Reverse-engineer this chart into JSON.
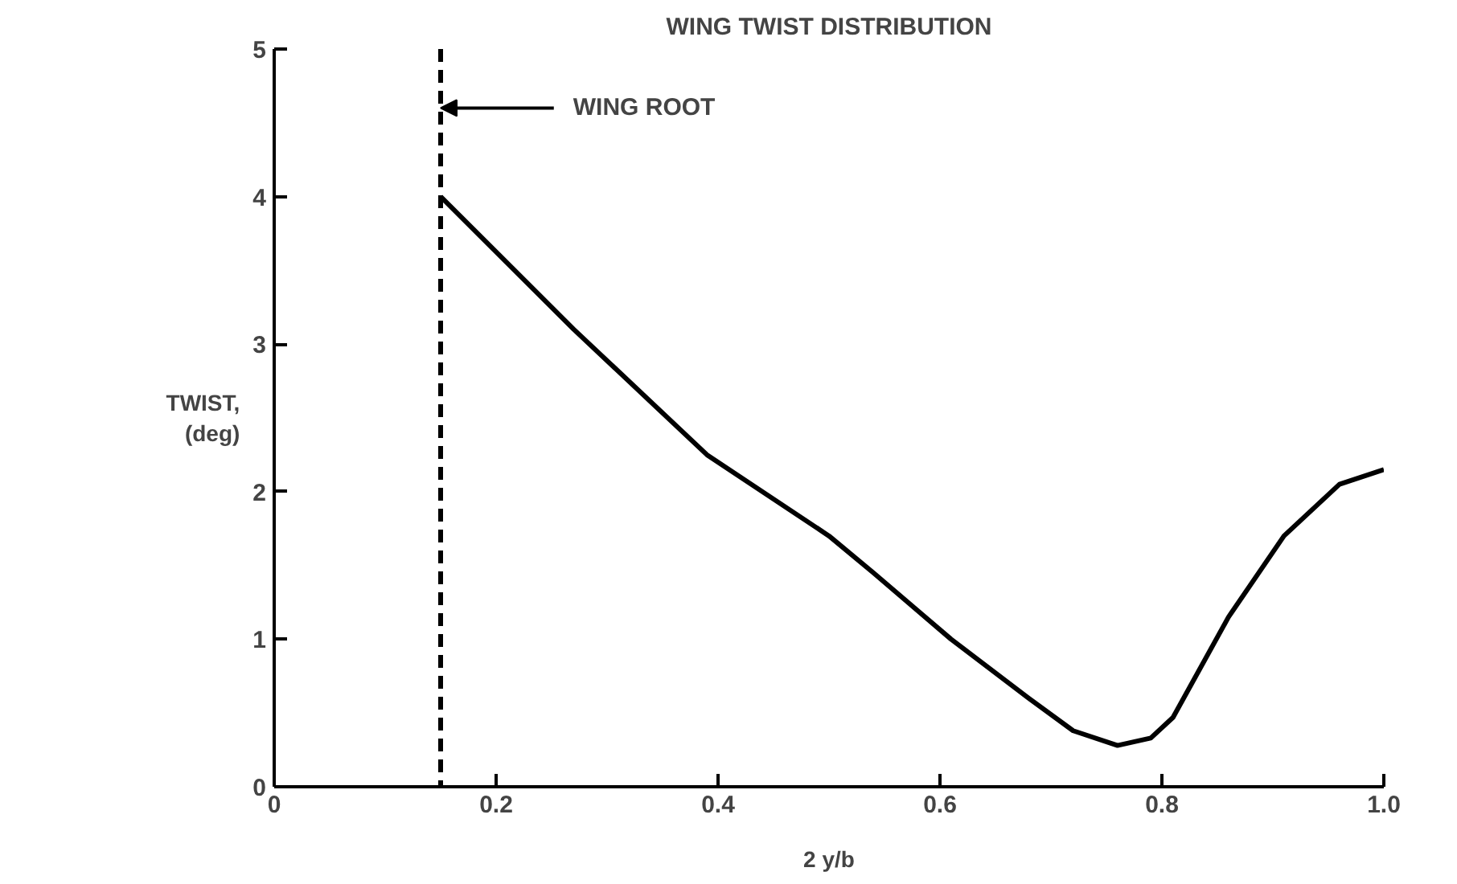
{
  "chart_data": {
    "type": "line",
    "title": "WING TWIST DISTRIBUTION",
    "xlabel": "2 y/b",
    "ylabel": "TWIST,\n(deg)",
    "x": [
      0.15,
      0.27,
      0.39,
      0.5,
      0.54,
      0.61,
      0.68,
      0.72,
      0.76,
      0.79,
      0.81,
      0.86,
      0.91,
      0.96,
      1.0
    ],
    "series": [
      {
        "color": "#000000",
        "values": [
          4.0,
          3.1,
          2.25,
          1.7,
          1.45,
          1.0,
          0.6,
          0.38,
          0.28,
          0.33,
          0.47,
          1.15,
          1.7,
          2.05,
          2.15
        ]
      }
    ],
    "xlim": [
      0,
      1.0
    ],
    "ylim": [
      0,
      5
    ],
    "xticks": [
      0,
      0.2,
      0.4,
      0.6,
      0.8,
      {
        "value": 1.0,
        "label": "1.0"
      }
    ],
    "yticks": [
      0,
      1,
      2,
      3,
      4,
      5
    ],
    "ref_lines": [
      {
        "axis": "x",
        "value": 0.15,
        "label": "WING ROOT",
        "line_style": "dashed",
        "color": "#000000"
      }
    ],
    "grid": false,
    "marker": "none",
    "line_style": "solid"
  }
}
